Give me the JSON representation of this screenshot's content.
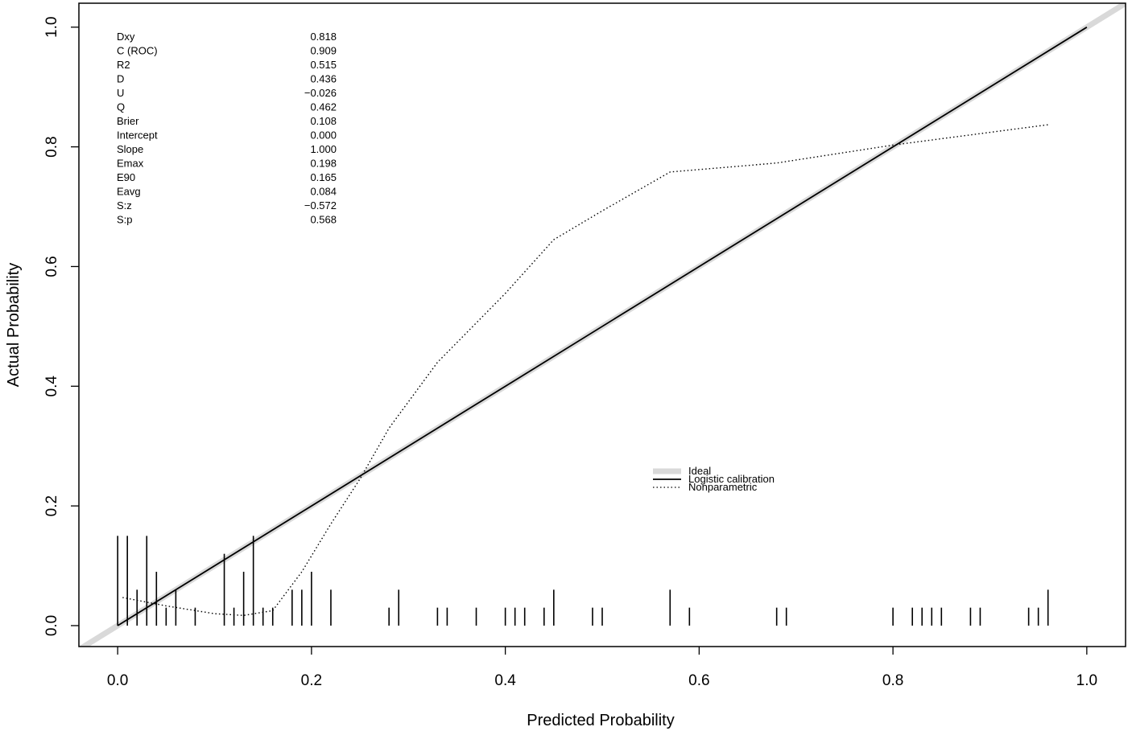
{
  "chart_data": {
    "type": "line",
    "title": "",
    "xlabel": "Predicted Probability",
    "ylabel": "Actual Probability",
    "xlim": [
      -0.04,
      1.04
    ],
    "ylim": [
      -0.035,
      1.04
    ],
    "x_ticks": [
      "0.0",
      "0.2",
      "0.4",
      "0.6",
      "0.8",
      "1.0"
    ],
    "y_ticks": [
      "0.0",
      "0.2",
      "0.4",
      "0.6",
      "0.8",
      "1.0"
    ],
    "grid": false,
    "legend_position": "center-right",
    "stats": [
      {
        "label": "Dxy",
        "value": "0.818"
      },
      {
        "label": "C (ROC)",
        "value": "0.909"
      },
      {
        "label": "R2",
        "value": "0.515"
      },
      {
        "label": "D",
        "value": "0.436"
      },
      {
        "label": "U",
        "value": "−0.026"
      },
      {
        "label": "Q",
        "value": "0.462"
      },
      {
        "label": "Brier",
        "value": "0.108"
      },
      {
        "label": "Intercept",
        "value": "0.000"
      },
      {
        "label": "Slope",
        "value": "1.000"
      },
      {
        "label": "Emax",
        "value": "0.198"
      },
      {
        "label": "E90",
        "value": "0.165"
      },
      {
        "label": "Eavg",
        "value": "0.084"
      },
      {
        "label": "S:z",
        "value": "−0.572"
      },
      {
        "label": "S:p",
        "value": "0.568"
      }
    ],
    "series": [
      {
        "name": "Ideal",
        "style": "thick-gray",
        "color": "#d9d9d9",
        "x": [
          -0.04,
          1.04
        ],
        "y": [
          -0.04,
          1.04
        ]
      },
      {
        "name": "Logistic calibration",
        "style": "solid",
        "color": "#000000",
        "x": [
          0.0,
          1.0
        ],
        "y": [
          0.0,
          1.0
        ]
      },
      {
        "name": "Nonparametric",
        "style": "dotted",
        "color": "#000000",
        "x": [
          0.005,
          0.05,
          0.1,
          0.13,
          0.16,
          0.19,
          0.22,
          0.25,
          0.28,
          0.33,
          0.4,
          0.45,
          0.5,
          0.57,
          0.68,
          0.8,
          0.96
        ],
        "y": [
          0.047,
          0.033,
          0.02,
          0.017,
          0.025,
          0.09,
          0.17,
          0.245,
          0.33,
          0.44,
          0.555,
          0.645,
          0.693,
          0.758,
          0.773,
          0.803,
          0.837
        ]
      }
    ],
    "rug_upper": [
      {
        "x": 0.0,
        "h": 0.15
      },
      {
        "x": 0.01,
        "h": 0.15
      },
      {
        "x": 0.02,
        "h": 0.06
      },
      {
        "x": 0.03,
        "h": 0.15
      },
      {
        "x": 0.04,
        "h": 0.09
      },
      {
        "x": 0.05,
        "h": 0.03
      },
      {
        "x": 0.06,
        "h": 0.06
      },
      {
        "x": 0.08,
        "h": 0.03
      },
      {
        "x": 0.11,
        "h": 0.12
      },
      {
        "x": 0.12,
        "h": 0.03
      },
      {
        "x": 0.13,
        "h": 0.09
      },
      {
        "x": 0.14,
        "h": 0.15
      },
      {
        "x": 0.15,
        "h": 0.03
      },
      {
        "x": 0.16,
        "h": 0.03
      },
      {
        "x": 0.18,
        "h": 0.06
      },
      {
        "x": 0.19,
        "h": 0.06
      },
      {
        "x": 0.2,
        "h": 0.09
      },
      {
        "x": 0.22,
        "h": 0.06
      },
      {
        "x": 0.28,
        "h": 0.03
      },
      {
        "x": 0.29,
        "h": 0.06
      },
      {
        "x": 0.33,
        "h": 0.03
      },
      {
        "x": 0.34,
        "h": 0.03
      },
      {
        "x": 0.37,
        "h": 0.03
      },
      {
        "x": 0.4,
        "h": 0.03
      },
      {
        "x": 0.41,
        "h": 0.03
      },
      {
        "x": 0.42,
        "h": 0.03
      },
      {
        "x": 0.44,
        "h": 0.03
      },
      {
        "x": 0.45,
        "h": 0.06
      },
      {
        "x": 0.49,
        "h": 0.03
      },
      {
        "x": 0.5,
        "h": 0.03
      },
      {
        "x": 0.57,
        "h": 0.06
      },
      {
        "x": 0.59,
        "h": 0.03
      },
      {
        "x": 0.68,
        "h": 0.03
      },
      {
        "x": 0.69,
        "h": 0.03
      },
      {
        "x": 0.8,
        "h": 0.03
      },
      {
        "x": 0.82,
        "h": 0.03
      },
      {
        "x": 0.83,
        "h": 0.03
      },
      {
        "x": 0.84,
        "h": 0.03
      },
      {
        "x": 0.85,
        "h": 0.03
      },
      {
        "x": 0.88,
        "h": 0.03
      },
      {
        "x": 0.89,
        "h": 0.03
      },
      {
        "x": 0.94,
        "h": 0.03
      },
      {
        "x": 0.95,
        "h": 0.03
      },
      {
        "x": 0.96,
        "h": 0.06
      }
    ]
  }
}
